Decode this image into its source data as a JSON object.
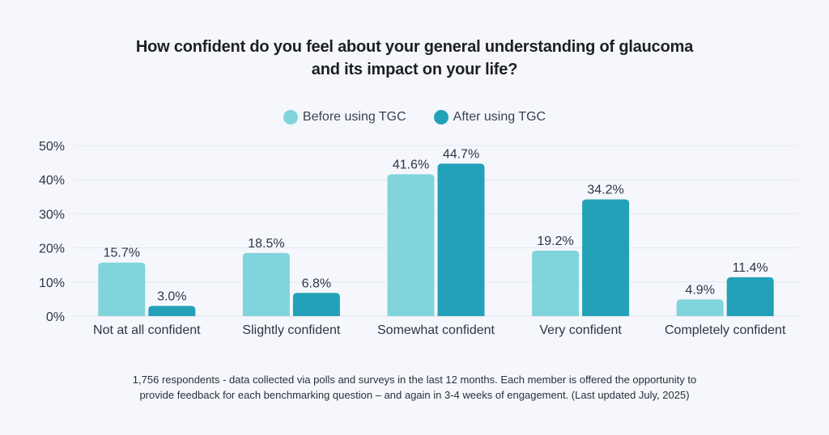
{
  "chart_data": {
    "type": "bar",
    "title_lines": [
      "How confident do you feel about your general understanding of glaucoma",
      "and its impact on your life?"
    ],
    "xlabel": "",
    "ylabel": "",
    "ylim": [
      0,
      50
    ],
    "yticks": [
      0,
      10,
      20,
      30,
      40,
      50
    ],
    "ytick_labels": [
      "0%",
      "10%",
      "20%",
      "30%",
      "40%",
      "50%"
    ],
    "grid": true,
    "legend_position": "top-center",
    "categories": [
      "Not at all confident",
      "Slightly confident",
      "Somewhat confident",
      "Very confident",
      "Completely confident"
    ],
    "series": [
      {
        "name": "Before using TGC",
        "color": "#82d4dc",
        "values": [
          15.7,
          18.5,
          41.6,
          19.2,
          4.9
        ],
        "labels": [
          "15.7%",
          "18.5%",
          "41.6%",
          "19.2%",
          "4.9%"
        ]
      },
      {
        "name": "After using TGC",
        "color": "#23a1b8",
        "values": [
          3.0,
          6.8,
          44.7,
          34.2,
          11.4
        ],
        "labels": [
          "3.0%",
          "6.8%",
          "44.7%",
          "34.2%",
          "11.4%"
        ]
      }
    ]
  },
  "footnote": {
    "line1": "1,756 respondents - data collected via polls and surveys in the last 12 months.  Each member is offered the opportunity to",
    "line2": "provide feedback for each benchmarking question – and again in 3-4 weeks of engagement. (Last updated July, 2025)"
  },
  "colors": {
    "background": "#f5f7fc",
    "gridline": "#e3e7f0",
    "text": "#2e3545"
  }
}
